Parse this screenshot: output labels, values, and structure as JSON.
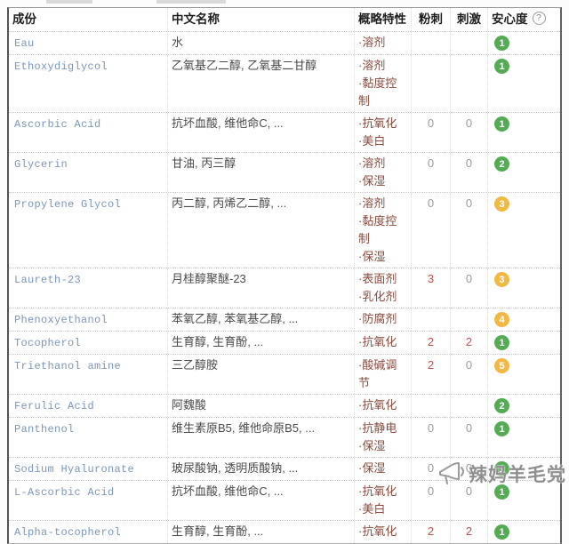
{
  "header": {
    "ingredient": "成份",
    "chinese_name": "中文名称",
    "traits": "概略特性",
    "acne": "粉刺",
    "irritation": "刺激",
    "safety": "安心度",
    "help": "?"
  },
  "rows": [
    {
      "name": "Eau",
      "cn": "水",
      "traits": [
        "·溶剂"
      ],
      "acne": "",
      "irritation": "",
      "safety": "1",
      "level": "green"
    },
    {
      "name": "Ethoxydiglycol",
      "cn": "乙氧基乙二醇, 乙氧基二甘醇",
      "traits": [
        "·溶剂",
        "·黏度控制"
      ],
      "acne": "",
      "irritation": "",
      "safety": "1",
      "level": "green"
    },
    {
      "name": "Ascorbic Acid",
      "cn": "抗坏血酸, 维他命C, ...",
      "traits": [
        "·抗氧化",
        "·美白"
      ],
      "acne": "0",
      "irritation": "0",
      "safety": "1",
      "level": "green"
    },
    {
      "name": "Glycerin",
      "cn": "甘油, 丙三醇",
      "traits": [
        "·溶剂",
        "·保湿"
      ],
      "acne": "0",
      "irritation": "0",
      "safety": "2",
      "level": "green"
    },
    {
      "name": "Propylene Glycol",
      "cn": "丙二醇, 丙烯乙二醇, ...",
      "traits": [
        "·溶剂",
        "·黏度控制",
        "·保湿"
      ],
      "acne": "0",
      "irritation": "0",
      "safety": "3",
      "level": "yellow"
    },
    {
      "name": "Laureth-23",
      "cn": "月桂醇聚醚-23",
      "traits": [
        "·表面剂",
        "·乳化剂"
      ],
      "acne": "3",
      "irritation": "0",
      "safety": "3",
      "level": "yellow"
    },
    {
      "name": "Phenoxyethanol",
      "cn": "苯氧乙醇, 苯氧基乙醇, ...",
      "traits": [
        "·防腐剂"
      ],
      "acne": "",
      "irritation": "",
      "safety": "4",
      "level": "yellow"
    },
    {
      "name": "Tocopherol",
      "cn": "生育醇, 生育酚, ...",
      "traits": [
        "·抗氧化"
      ],
      "acne": "2",
      "irritation": "2",
      "safety": "1",
      "level": "green"
    },
    {
      "name": "Triethanol amine",
      "cn": "三乙醇胺",
      "traits": [
        "·酸碱调节"
      ],
      "acne": "2",
      "irritation": "0",
      "safety": "5",
      "level": "yellow"
    },
    {
      "name": "Ferulic Acid",
      "cn": "阿魏酸",
      "traits": [
        "·抗氧化"
      ],
      "acne": "",
      "irritation": "",
      "safety": "2",
      "level": "green"
    },
    {
      "name": "Panthenol",
      "cn": "维生素原B5, 维他命原B5, ...",
      "traits": [
        "·抗静电",
        "·保湿"
      ],
      "acne": "0",
      "irritation": "0",
      "safety": "1",
      "level": "green"
    },
    {
      "name": "Sodium Hyaluronate",
      "cn": "玻尿酸钠, 透明质酸钠, ...",
      "traits": [
        "·保湿"
      ],
      "acne": "0",
      "irritation": "0",
      "safety": "1",
      "level": "green"
    },
    {
      "name": "L-Ascorbic Acid",
      "cn": "抗坏血酸, 维他命C, ...",
      "traits": [
        "·抗氧化",
        "·美白"
      ],
      "acne": "0",
      "irritation": "0",
      "safety": "1",
      "level": "green"
    },
    {
      "name": "Alpha-tocopherol",
      "cn": "生育醇, 生育酚, ...",
      "traits": [
        "·抗氧化"
      ],
      "acne": "2",
      "irritation": "2",
      "safety": "1",
      "level": "green"
    }
  ],
  "watermark": {
    "text": "辣妈羊毛党",
    "icon": "megaphone-icon"
  },
  "colors": {
    "safety_green": "#55ab55",
    "safety_yellow": "#f2b844",
    "value_red": "#c0504d",
    "value_grey": "#9b9b9b",
    "ingredient_blue": "#7b96ba",
    "trait_brown": "#8a4a3c"
  }
}
